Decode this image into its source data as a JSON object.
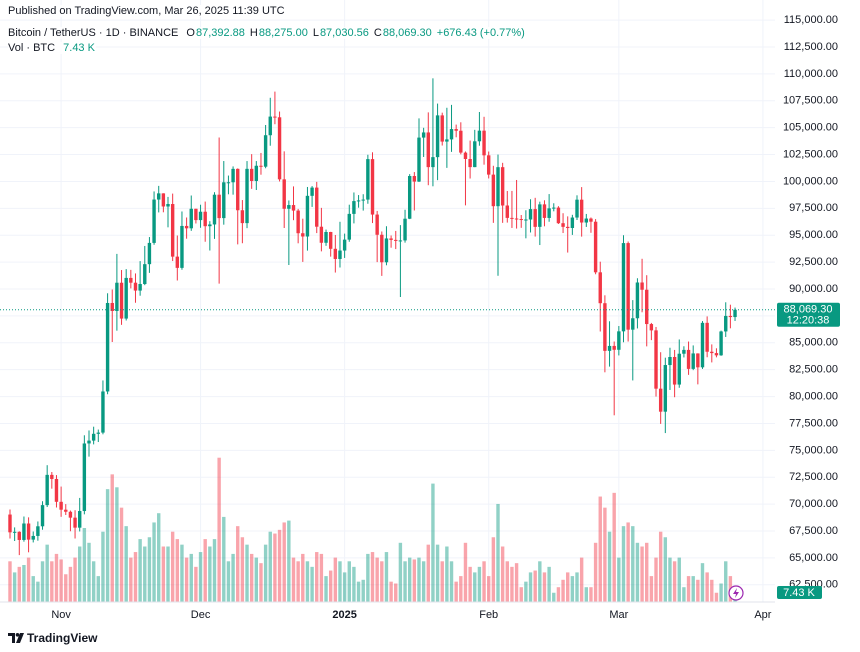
{
  "chart_data": {
    "type": "candlestick",
    "published": "Published on TradingView.com, Mar 26, 2025 11:39 UTC",
    "legend": {
      "symbol": "Bitcoin / TetherUS · 1D · BINANCE",
      "fields": [
        {
          "key": "O",
          "value": "87,392.88"
        },
        {
          "key": "H",
          "value": "88,275.00"
        },
        {
          "key": "L",
          "value": "87,030.56"
        },
        {
          "key": "C",
          "value": "88,069.30"
        }
      ],
      "change": "+676.43 (+0.77%)",
      "volume_title": "Vol · BTC",
      "volume": "7.43 K"
    },
    "price_label": "88,069.30",
    "countdown": "12:20:38",
    "brand": "TradingView",
    "up_color": "#089981",
    "down_color": "#f23645",
    "grid": true,
    "xlim": [
      -2.15,
      164.6
    ],
    "xticks": [
      {
        "value": 11,
        "label": "Nov"
      },
      {
        "value": 41,
        "label": "Dec"
      },
      {
        "value": 72,
        "label": "2025"
      },
      {
        "value": 103,
        "label": "Feb"
      },
      {
        "value": 131,
        "label": "Mar"
      },
      {
        "value": 162,
        "label": "Apr"
      }
    ],
    "ylim": [
      60900,
      116870
    ],
    "yticks": [
      {
        "value": 62500,
        "label": "62,500.00"
      },
      {
        "value": 65000,
        "label": "65,000.00"
      },
      {
        "value": 67500,
        "label": "67,500.00"
      },
      {
        "value": 70000,
        "label": "70,000.00"
      },
      {
        "value": 72500,
        "label": "72,500.00"
      },
      {
        "value": 75000,
        "label": "75,000.00"
      },
      {
        "value": 77500,
        "label": "77,500.00"
      },
      {
        "value": 80000,
        "label": "80,000.00"
      },
      {
        "value": 82500,
        "label": "82,500.00"
      },
      {
        "value": 85000,
        "label": "85,000.00"
      },
      {
        "value": 87500,
        "label": "87,500.00"
      },
      {
        "value": 90000,
        "label": "90,000.00"
      },
      {
        "value": 92500,
        "label": "92,500.00"
      },
      {
        "value": 95000,
        "label": "95,000.00"
      },
      {
        "value": 97500,
        "label": "97,500.00"
      },
      {
        "value": 100000,
        "label": "100,000.00"
      },
      {
        "value": 102500,
        "label": "102,500.00"
      },
      {
        "value": 105000,
        "label": "105,000.00"
      },
      {
        "value": 107500,
        "label": "107,500.00"
      },
      {
        "value": 110000,
        "label": "110,000.00"
      },
      {
        "value": 112500,
        "label": "112,500.00"
      },
      {
        "value": 115000,
        "label": "115,000.00"
      }
    ],
    "volume_ylim": [
      0,
      80
    ],
    "candles": [
      [
        69031,
        69500,
        66800,
        67378
      ],
      [
        67378,
        67836,
        66571,
        67426
      ],
      [
        67426,
        67472,
        65260,
        66668
      ],
      [
        66668,
        68850,
        66510,
        68198
      ],
      [
        68198,
        68771,
        65520,
        66698
      ],
      [
        66698,
        67454,
        66439,
        67041
      ],
      [
        67041,
        68388,
        66600,
        67939
      ],
      [
        67939,
        70270,
        67618,
        69907
      ],
      [
        69907,
        73620,
        69730,
        72720
      ],
      [
        72720,
        72984,
        71436,
        72339
      ],
      [
        72339,
        72700,
        69685,
        70215
      ],
      [
        70215,
        71632,
        68820,
        69482
      ],
      [
        69482,
        70000,
        68990,
        69289
      ],
      [
        69289,
        69400,
        67478,
        68742
      ],
      [
        68742,
        69433,
        66803,
        67811
      ],
      [
        67811,
        70577,
        67458,
        69359
      ],
      [
        69359,
        76400,
        69050,
        75639
      ],
      [
        75639,
        76849,
        74416,
        75905
      ],
      [
        75905,
        77199,
        75555,
        76538
      ],
      [
        76538,
        76932,
        75773,
        76649
      ],
      [
        76649,
        81500,
        76492,
        80474
      ],
      [
        80474,
        89604,
        80216,
        88701
      ],
      [
        88701,
        89956,
        85072,
        87955
      ],
      [
        87955,
        93265,
        86127,
        90584
      ],
      [
        90584,
        91765,
        86668,
        87250
      ],
      [
        87250,
        91850,
        87073,
        91031
      ],
      [
        91031,
        91779,
        90056,
        90586
      ],
      [
        90586,
        91449,
        88722,
        89855
      ],
      [
        89855,
        92594,
        89376,
        90464
      ],
      [
        90464,
        94002,
        90357,
        92310
      ],
      [
        92310,
        94831,
        91500,
        94286
      ],
      [
        94286,
        99073,
        94111,
        98317
      ],
      [
        98317,
        99588,
        97122,
        98893
      ],
      [
        98893,
        98900,
        97133,
        97672
      ],
      [
        97672,
        98564,
        95734,
        97901
      ],
      [
        97901,
        98871,
        92600,
        93010
      ],
      [
        93010,
        94973,
        90791,
        91965
      ],
      [
        91965,
        97208,
        91792,
        95863
      ],
      [
        95863,
        96650,
        94677,
        95643
      ],
      [
        95643,
        98693,
        95407,
        97460
      ],
      [
        97460,
        97463,
        96092,
        96407
      ],
      [
        96407,
        97836,
        95693,
        97185
      ],
      [
        97185,
        98130,
        94395,
        95840
      ],
      [
        95840,
        96305,
        93578,
        96002
      ],
      [
        96002,
        99000,
        94660,
        98768
      ],
      [
        98768,
        104088,
        90500,
        96593
      ],
      [
        96593,
        101898,
        95981,
        99920
      ],
      [
        99920,
        100548,
        98806,
        99923
      ],
      [
        99923,
        101399,
        98771,
        101170
      ],
      [
        101170,
        101215,
        94150,
        97323
      ],
      [
        97323,
        98270,
        94256,
        96126
      ],
      [
        96126,
        101895,
        95658,
        101172
      ],
      [
        101172,
        102540,
        99311,
        100044
      ],
      [
        100044,
        101895,
        99205,
        101459
      ],
      [
        101459,
        102650,
        100626,
        101372
      ],
      [
        101372,
        105250,
        101227,
        104298
      ],
      [
        104298,
        107780,
        103322,
        106030
      ],
      [
        106030,
        108353,
        105321,
        105965
      ],
      [
        105965,
        106500,
        100000,
        100197
      ],
      [
        100197,
        102800,
        95671,
        97461
      ],
      [
        97461,
        98233,
        92232,
        97805
      ],
      [
        97805,
        99540,
        96398,
        97291
      ],
      [
        97291,
        97448,
        94250,
        95186
      ],
      [
        95186,
        96538,
        92520,
        94881
      ],
      [
        94881,
        99487,
        93569,
        98663
      ],
      [
        98663,
        99569,
        97632,
        99429
      ],
      [
        99429,
        99963,
        95199,
        95792
      ],
      [
        95792,
        97544,
        93500,
        94299
      ],
      [
        94299,
        95525,
        94014,
        95300
      ],
      [
        95300,
        95318,
        93009,
        93738
      ],
      [
        93738,
        95024,
        91530,
        92792
      ],
      [
        92792,
        96250,
        92000,
        93576
      ],
      [
        93576,
        95151,
        92888,
        94591
      ],
      [
        94591,
        97839,
        94392,
        96984
      ],
      [
        96984,
        98976,
        96100,
        98174
      ],
      [
        98174,
        98734,
        97562,
        98236
      ],
      [
        98236,
        98813,
        97291,
        98314
      ],
      [
        98314,
        102482,
        97926,
        102078
      ],
      [
        102078,
        102712,
        96132,
        96922
      ],
      [
        96922,
        97258,
        92500,
        95043
      ],
      [
        95043,
        95349,
        91220,
        92484
      ],
      [
        92484,
        95836,
        92206,
        94701
      ],
      [
        94701,
        94977,
        93840,
        94566
      ],
      [
        94566,
        95400,
        93712,
        94488
      ],
      [
        94488,
        95940,
        89256,
        94516
      ],
      [
        94516,
        97371,
        94310,
        96534
      ],
      [
        96534,
        100681,
        96500,
        100505
      ],
      [
        100505,
        100873,
        97300,
        99987
      ],
      [
        99987,
        105865,
        99950,
        104077
      ],
      [
        104077,
        104988,
        102277,
        104556
      ],
      [
        104556,
        106422,
        99651,
        101332
      ],
      [
        101332,
        109588,
        99550,
        102260
      ],
      [
        102260,
        107240,
        100119,
        106143
      ],
      [
        106143,
        106394,
        103339,
        103706
      ],
      [
        103706,
        106850,
        101262,
        103910
      ],
      [
        103910,
        107120,
        102750,
        104870
      ],
      [
        104870,
        105286,
        104106,
        104714
      ],
      [
        104714,
        105500,
        102520,
        102682
      ],
      [
        102682,
        102789,
        97777,
        102087
      ],
      [
        102087,
        103800,
        100272,
        101332
      ],
      [
        101332,
        104800,
        101328,
        103733
      ],
      [
        103733,
        106457,
        103321,
        104722
      ],
      [
        104722,
        106012,
        101560,
        102429
      ],
      [
        102429,
        102783,
        100279,
        100635
      ],
      [
        100635,
        101456,
        96150,
        97700
      ],
      [
        97700,
        102500,
        91231,
        101328
      ],
      [
        101328,
        101732,
        96150,
        97763
      ],
      [
        97763,
        99113,
        96174,
        96612
      ],
      [
        96612,
        99120,
        95676,
        96554
      ],
      [
        96554,
        100137,
        95620,
        96506
      ],
      [
        96506,
        96880,
        95688,
        96444
      ],
      [
        96444,
        97323,
        94713,
        96462
      ],
      [
        96462,
        98345,
        95256,
        97430
      ],
      [
        97430,
        98478,
        94876,
        95778
      ],
      [
        95778,
        98119,
        94088,
        97869
      ],
      [
        97869,
        98249,
        95830,
        96608
      ],
      [
        96608,
        98826,
        96252,
        97500
      ],
      [
        97500,
        97972,
        97223,
        97569
      ],
      [
        97569,
        97704,
        96046,
        96118
      ],
      [
        96118,
        97046,
        95205,
        95780
      ],
      [
        95780,
        96753,
        93388,
        95671
      ],
      [
        95671,
        96899,
        95029,
        96644
      ],
      [
        96644,
        98711,
        96415,
        98305
      ],
      [
        98305,
        99475,
        94871,
        96181
      ],
      [
        96181,
        96980,
        95770,
        96551
      ],
      [
        96551,
        96650,
        95227,
        96258
      ],
      [
        96258,
        96500,
        91370,
        91552
      ],
      [
        91552,
        92540,
        86050,
        88680
      ],
      [
        88680,
        89414,
        82256,
        84250
      ],
      [
        84250,
        87000,
        82786,
        84708
      ],
      [
        84708,
        85120,
        78258,
        84349
      ],
      [
        84349,
        86558,
        83824,
        86064
      ],
      [
        86064,
        95000,
        85050,
        94270
      ],
      [
        94270,
        94416,
        85117,
        86220
      ],
      [
        86220,
        88967,
        81500,
        87281
      ],
      [
        87281,
        91000,
        86334,
        90606
      ],
      [
        90606,
        92810,
        87836,
        89931
      ],
      [
        89931,
        91283,
        84667,
        86742
      ],
      [
        86742,
        86847,
        85247,
        86154
      ],
      [
        86154,
        86471,
        80000,
        80734
      ],
      [
        80734,
        84123,
        77459,
        78595
      ],
      [
        78595,
        83617,
        76606,
        82932
      ],
      [
        82932,
        84539,
        80614,
        83680
      ],
      [
        83680,
        84336,
        79939,
        81115
      ],
      [
        81115,
        85309,
        80818,
        83983
      ],
      [
        83983,
        84676,
        83638,
        84338
      ],
      [
        84338,
        85117,
        82017,
        82574
      ],
      [
        82574,
        84756,
        82456,
        84010
      ],
      [
        84010,
        84021,
        81134,
        82718
      ],
      [
        82718,
        87021,
        82569,
        86855
      ],
      [
        86855,
        87453,
        83655,
        84167
      ],
      [
        84167,
        84850,
        83175,
        84043
      ],
      [
        84043,
        84489,
        83647,
        83832
      ],
      [
        83832,
        86129,
        83790,
        86054
      ],
      [
        86054,
        88765,
        85541,
        87498
      ],
      [
        87498,
        88542,
        86346,
        87392
      ],
      [
        87392.88,
        88275,
        87030.56,
        88069.3
      ]
    ],
    "volume": [
      22,
      16,
      19,
      20,
      24,
      14,
      11,
      22,
      31,
      22,
      26,
      23,
      15,
      19,
      24,
      30,
      40,
      32,
      22,
      14,
      38,
      61,
      69,
      62,
      51,
      41,
      24,
      27,
      34,
      30,
      35,
      43,
      48,
      30,
      30,
      38,
      34,
      31,
      24,
      26,
      19,
      27,
      34,
      30,
      34,
      78,
      46,
      22,
      26,
      41,
      35,
      31,
      26,
      24,
      21,
      31,
      38,
      37,
      39,
      43,
      44,
      24,
      22,
      26,
      22,
      19,
      27,
      26,
      14,
      17,
      24,
      22,
      16,
      22,
      19,
      11,
      12,
      26,
      27,
      24,
      22,
      27,
      11,
      10,
      32,
      22,
      24,
      23,
      24,
      22,
      31,
      64,
      31,
      22,
      30,
      22,
      11,
      14,
      32,
      19,
      16,
      19,
      22,
      14,
      35,
      53,
      30,
      22,
      19,
      21,
      8,
      11,
      16,
      17,
      22,
      16,
      19,
      5,
      8,
      12,
      16,
      14,
      16,
      24,
      8,
      8,
      32,
      57,
      51,
      38,
      59,
      24,
      41,
      43,
      41,
      32,
      30,
      32,
      14,
      24,
      38,
      35,
      24,
      22,
      24,
      8,
      14,
      14,
      12,
      21,
      16,
      12,
      5,
      10,
      22,
      14,
      7.43
    ]
  }
}
